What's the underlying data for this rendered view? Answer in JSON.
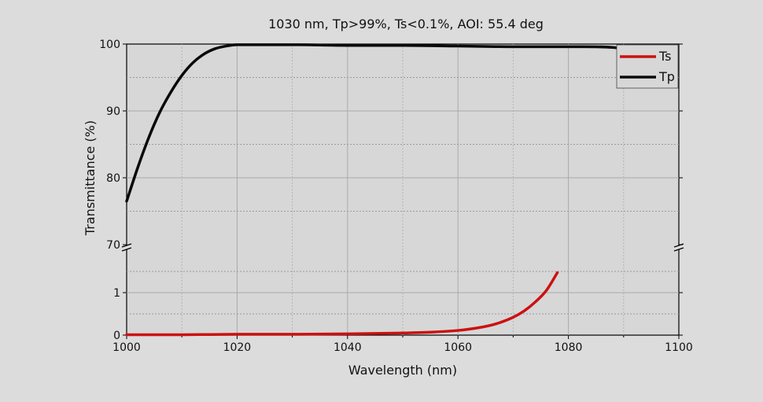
{
  "chart_data": {
    "type": "line",
    "title": "1030 nm, Tp>99%, Ts<0.1%, AOI: 55.4 deg",
    "xlabel": "Wavelength (nm)",
    "ylabel": "Transmittance (%)",
    "xlim": [
      1000,
      1100
    ],
    "x_ticks": [
      1000,
      1020,
      1040,
      1060,
      1080,
      1100
    ],
    "y_upper": {
      "range": [
        70,
        100
      ],
      "ticks": [
        70,
        80,
        90,
        100
      ]
    },
    "y_lower": {
      "range": [
        0,
        2
      ],
      "ticks": [
        0,
        1
      ]
    },
    "axis_break": true,
    "grid": true,
    "legend_position": "top-right",
    "colors": {
      "Ts": "#cc1111",
      "Tp": "#0a0a0a",
      "background": "#dcdcdc",
      "plot_area": "#d7d7d7"
    },
    "series": [
      {
        "name": "Ts",
        "panel": "lower",
        "x": [
          1000,
          1010,
          1020,
          1030,
          1040,
          1050,
          1055,
          1060,
          1064,
          1067,
          1070,
          1072,
          1074,
          1076,
          1078
        ],
        "y": [
          0.01,
          0.01,
          0.02,
          0.02,
          0.03,
          0.05,
          0.07,
          0.11,
          0.18,
          0.27,
          0.42,
          0.57,
          0.78,
          1.05,
          1.47
        ]
      },
      {
        "name": "Tp",
        "panel": "upper",
        "x": [
          1000,
          1002,
          1004,
          1006,
          1008,
          1010,
          1012,
          1014,
          1016,
          1018,
          1020,
          1025,
          1030,
          1040,
          1050,
          1060,
          1070,
          1080,
          1088,
          1090
        ],
        "y": [
          76.5,
          81.5,
          86.0,
          89.8,
          92.8,
          95.3,
          97.2,
          98.5,
          99.3,
          99.7,
          99.9,
          99.9,
          99.9,
          99.8,
          99.8,
          99.7,
          99.6,
          99.6,
          99.5,
          99.3
        ]
      }
    ]
  }
}
